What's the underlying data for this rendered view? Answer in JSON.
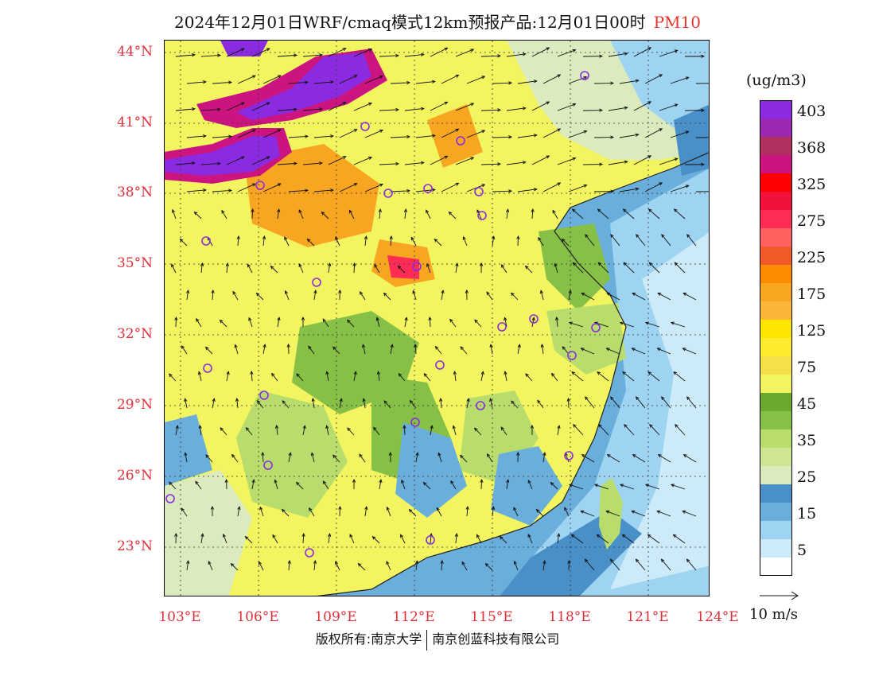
{
  "title": {
    "main": "2024年12月01日WRF/cmaq模式12km预报产品:12月01日00时",
    "pollutant": "PM10",
    "pollutant_color": "#e8322e"
  },
  "axes": {
    "latitude_labels": [
      "44°N",
      "41°N",
      "38°N",
      "35°N",
      "32°N",
      "29°N",
      "26°N",
      "23°N"
    ],
    "longitude_labels": [
      "103°E",
      "106°E",
      "109°E",
      "112°E",
      "115°E",
      "118°E",
      "121°E",
      "124°E"
    ],
    "label_color": "#e0303a"
  },
  "legend": {
    "unit": "(ug/m3)",
    "labels": [
      "403",
      "368",
      "325",
      "275",
      "225",
      "175",
      "125",
      "75",
      "45",
      "35",
      "25",
      "15",
      "5"
    ],
    "colors_top_to_bottom": [
      "#8a2be2",
      "#9c27b0",
      "#b03060",
      "#cc1480",
      "#ff0000",
      "#f2113b",
      "#ff2d55",
      "#ff6060",
      "#f05a28",
      "#ff8c00",
      "#f8a522",
      "#fbb63a",
      "#ffe600",
      "#ffec2e",
      "#f5e04a",
      "#f2f560",
      "#6aa82e",
      "#86c046",
      "#b8dd6c",
      "#cfe590",
      "#dcebbd",
      "#4a90c8",
      "#6aaedc",
      "#9ed4f2",
      "#cdeaf8",
      "#ffffff"
    ]
  },
  "wind_reference": {
    "label": "10 m/s"
  },
  "copyright": {
    "left": "版权所有:南京大学",
    "right": "南京创蓝科技有限公司"
  },
  "map_regions": {
    "colors": {
      "ocean_deep": "#4a90c8",
      "ocean_mid": "#6aaedc",
      "ocean_light": "#9ed4f2",
      "ocean_pale": "#cdeaf8",
      "land_yellow": "#f2f560",
      "land_yellow2": "#f5e04a",
      "land_green": "#86c046",
      "land_lightgreen": "#b8dd6c",
      "land_pale": "#dcebbd",
      "orange": "#f8a522",
      "red": "#ff2d55",
      "magenta": "#cc1480",
      "purple": "#8a2be2"
    }
  }
}
